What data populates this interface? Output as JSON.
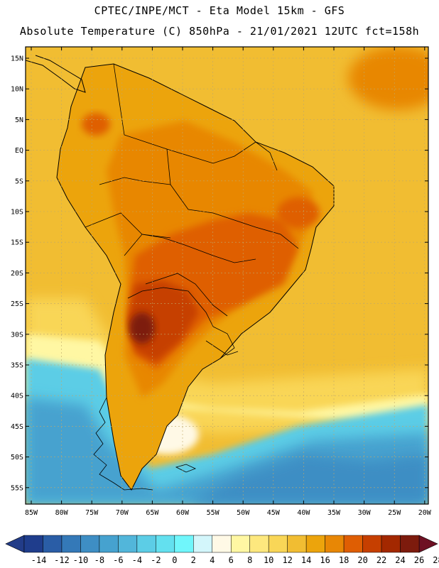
{
  "header": {
    "line1": "CPTEC/INPE/MCT -  Eta Model 15km - GFS",
    "line2": "Absolute Temperature (C) 850hPa - 21/01/2021 12UTC fct=158h"
  },
  "map": {
    "lat_labels": [
      "15N",
      "10N",
      "5N",
      "EQ",
      "5S",
      "10S",
      "15S",
      "20S",
      "25S",
      "30S",
      "35S",
      "40S",
      "45S",
      "50S",
      "55S"
    ],
    "lon_labels": [
      "85W",
      "80W",
      "75W",
      "70W",
      "65W",
      "60W",
      "55W",
      "50W",
      "45W",
      "40W",
      "35W",
      "30W",
      "25W",
      "20W"
    ],
    "region": "South America"
  },
  "colorbar": {
    "values": [
      "-14",
      "-12",
      "-10",
      "-8",
      "-6",
      "-4",
      "-2",
      "0",
      "2",
      "4",
      "6",
      "8",
      "10",
      "12",
      "14",
      "16",
      "18",
      "20",
      "22",
      "24",
      "26",
      "28"
    ],
    "colors": [
      "#1f3d8c",
      "#2a5da6",
      "#3479b8",
      "#3e8ec4",
      "#46a2cf",
      "#52b6da",
      "#5ccde6",
      "#63e0ef",
      "#70f6fb",
      "#d3f6fb",
      "#fff9e6",
      "#fff7a3",
      "#fde87e",
      "#f9d657",
      "#f1bd32",
      "#eca40c",
      "#e88705",
      "#df5e03",
      "#c63f00",
      "#a32800",
      "#7d1b0d"
    ],
    "min_color": "#223c88",
    "max_color": "#6e1023"
  },
  "palette": {
    "land_hot": "#e88705",
    "land_warm": "#eca40c",
    "land_core": "#c63f00",
    "land_peak": "#a32800",
    "ocean_tropical": "#f1bd32",
    "ocean_mid": "#f9d657",
    "ocean_cool": "#5ccde6",
    "ocean_cold": "#3e8ec4"
  }
}
